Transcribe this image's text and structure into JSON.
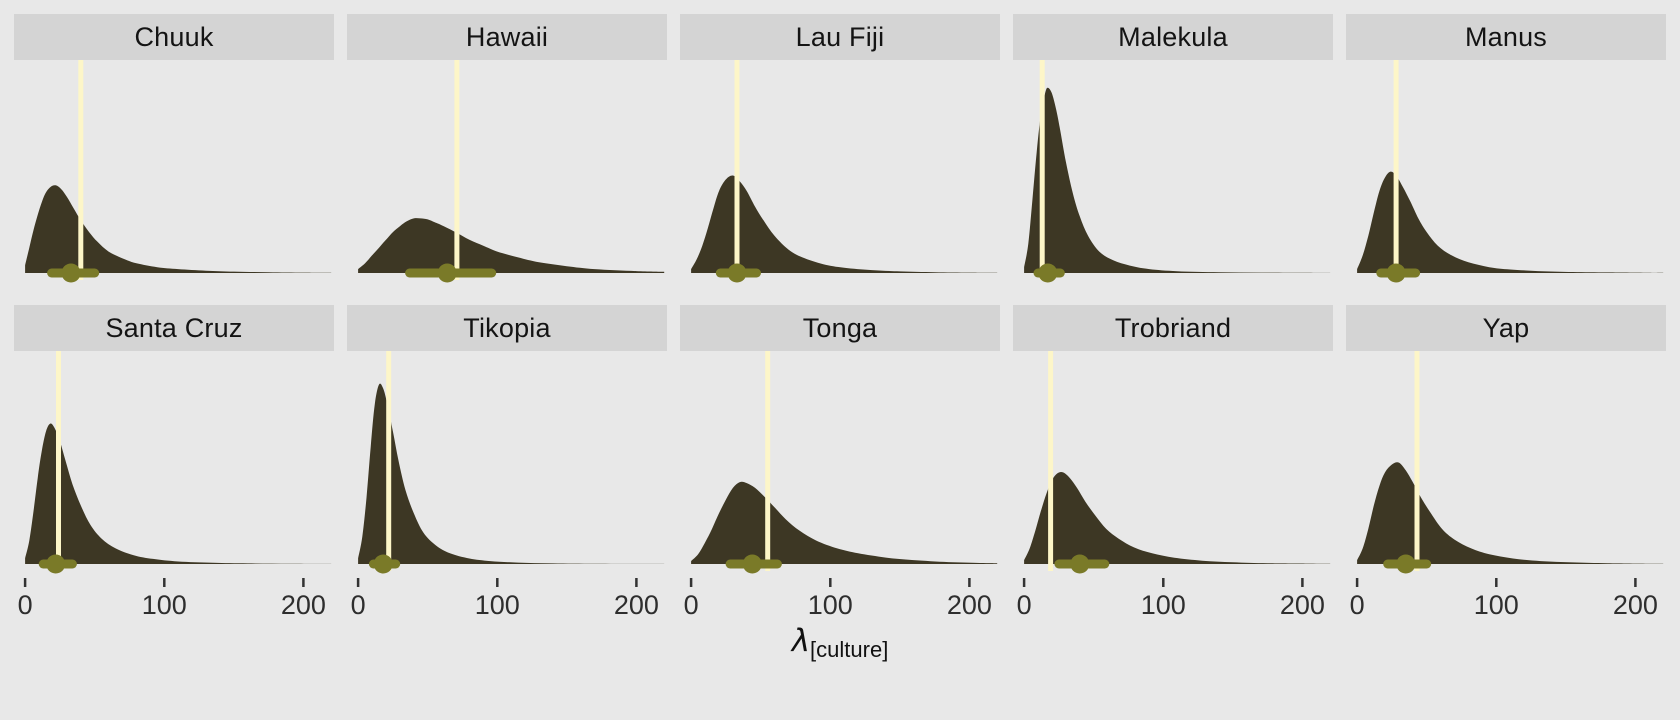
{
  "figure": {
    "xlabel_symbol": "λ",
    "xlabel_subscript": "[culture]"
  },
  "colors": {
    "page_background": "#e8e8e8",
    "strip_background": "#d4d4d4",
    "density_fill": "#3d3724",
    "interval": "#7a7a28",
    "observed_line": "#fdf6c8",
    "tick": "#333333",
    "tick_label": "#2e2e2e"
  },
  "chart_data": {
    "type": "area",
    "subtype": "posterior-density-facets",
    "x_ticks": [
      0,
      100,
      200
    ],
    "x_domain": [
      -8,
      222
    ],
    "xlabel": "lambda[culture]",
    "panels": [
      {
        "name": "Chuuk",
        "observed": 40,
        "point": 33,
        "interval": [
          19,
          50
        ],
        "density": {
          "x": [
            0,
            3,
            6,
            10,
            14,
            18,
            22,
            26,
            30,
            35,
            40,
            46,
            52,
            60,
            70,
            80,
            95,
            110,
            130,
            150,
            175,
            200,
            220
          ],
          "y": [
            0.04,
            0.13,
            0.22,
            0.32,
            0.4,
            0.44,
            0.45,
            0.43,
            0.39,
            0.33,
            0.27,
            0.21,
            0.16,
            0.11,
            0.075,
            0.05,
            0.03,
            0.02,
            0.012,
            0.007,
            0.004,
            0.002,
            0.001
          ]
        }
      },
      {
        "name": "Hawaii",
        "observed": 71,
        "point": 64,
        "interval": [
          37,
          96
        ],
        "density": {
          "x": [
            0,
            5,
            10,
            15,
            20,
            25,
            30,
            35,
            40,
            45,
            50,
            55,
            60,
            70,
            80,
            90,
            100,
            115,
            130,
            150,
            170,
            200,
            220
          ],
          "y": [
            0.02,
            0.05,
            0.09,
            0.13,
            0.17,
            0.21,
            0.24,
            0.265,
            0.28,
            0.28,
            0.275,
            0.26,
            0.245,
            0.21,
            0.17,
            0.14,
            0.11,
            0.08,
            0.055,
            0.035,
            0.02,
            0.01,
            0.006
          ]
        }
      },
      {
        "name": "Lau Fiji",
        "observed": 33,
        "point": 33,
        "interval": [
          21,
          47
        ],
        "density": {
          "x": [
            0,
            4,
            8,
            12,
            16,
            20,
            25,
            30,
            35,
            40,
            46,
            52,
            60,
            70,
            80,
            95,
            110,
            130,
            150,
            175,
            200,
            220
          ],
          "y": [
            0.02,
            0.07,
            0.14,
            0.23,
            0.33,
            0.42,
            0.48,
            0.5,
            0.47,
            0.42,
            0.34,
            0.27,
            0.19,
            0.12,
            0.08,
            0.045,
            0.027,
            0.015,
            0.008,
            0.004,
            0.002,
            0.001
          ]
        }
      },
      {
        "name": "Malekula",
        "observed": 13,
        "point": 17,
        "interval": [
          10,
          26
        ],
        "density": {
          "x": [
            0,
            3,
            6,
            9,
            12,
            15,
            17,
            20,
            23,
            26,
            30,
            35,
            40,
            46,
            54,
            64,
            76,
            90,
            110,
            140,
            170,
            200,
            220
          ],
          "y": [
            0.03,
            0.15,
            0.38,
            0.62,
            0.81,
            0.92,
            0.95,
            0.92,
            0.84,
            0.73,
            0.57,
            0.41,
            0.29,
            0.19,
            0.11,
            0.065,
            0.038,
            0.02,
            0.009,
            0.004,
            0.002,
            0.001,
            0.0005
          ]
        }
      },
      {
        "name": "Manus",
        "observed": 28,
        "point": 28,
        "interval": [
          17,
          42
        ],
        "density": {
          "x": [
            0,
            4,
            8,
            12,
            16,
            20,
            24,
            28,
            33,
            38,
            44,
            50,
            58,
            68,
            80,
            95,
            110,
            130,
            155,
            180,
            210,
            220
          ],
          "y": [
            0.02,
            0.09,
            0.19,
            0.31,
            0.42,
            0.49,
            0.52,
            0.5,
            0.44,
            0.37,
            0.28,
            0.21,
            0.14,
            0.09,
            0.055,
            0.03,
            0.018,
            0.01,
            0.005,
            0.003,
            0.001,
            0.0008
          ]
        }
      },
      {
        "name": "Santa Cruz",
        "observed": 24,
        "point": 22,
        "interval": [
          13,
          34
        ],
        "density": {
          "x": [
            0,
            3,
            6,
            9,
            12,
            15,
            18,
            21,
            25,
            29,
            34,
            40,
            47,
            55,
            65,
            78,
            92,
            110,
            135,
            160,
            190,
            220
          ],
          "y": [
            0.03,
            0.12,
            0.27,
            0.44,
            0.58,
            0.68,
            0.72,
            0.7,
            0.63,
            0.53,
            0.41,
            0.3,
            0.2,
            0.13,
            0.08,
            0.045,
            0.026,
            0.013,
            0.006,
            0.003,
            0.001,
            0.0005
          ]
        }
      },
      {
        "name": "Tikopia",
        "observed": 22,
        "point": 18,
        "interval": [
          11,
          27
        ],
        "density": {
          "x": [
            0,
            3,
            6,
            9,
            12,
            15,
            18,
            21,
            25,
            29,
            34,
            40,
            47,
            56,
            66,
            80,
            95,
            115,
            140,
            170,
            200,
            220
          ],
          "y": [
            0.03,
            0.14,
            0.34,
            0.6,
            0.82,
            0.92,
            0.9,
            0.82,
            0.68,
            0.53,
            0.38,
            0.26,
            0.16,
            0.095,
            0.055,
            0.028,
            0.015,
            0.007,
            0.003,
            0.001,
            0.0005,
            0.0003
          ]
        }
      },
      {
        "name": "Tonga",
        "observed": 55,
        "point": 44,
        "interval": [
          28,
          62
        ],
        "density": {
          "x": [
            0,
            5,
            10,
            15,
            20,
            25,
            30,
            35,
            40,
            46,
            52,
            60,
            68,
            78,
            90,
            105,
            120,
            140,
            160,
            185,
            210,
            220
          ],
          "y": [
            0.015,
            0.05,
            0.11,
            0.18,
            0.26,
            0.33,
            0.39,
            0.42,
            0.415,
            0.39,
            0.35,
            0.29,
            0.23,
            0.17,
            0.12,
            0.08,
            0.055,
            0.033,
            0.02,
            0.01,
            0.005,
            0.004
          ]
        }
      },
      {
        "name": "Trobriand",
        "observed": 19,
        "point": 40,
        "interval": [
          25,
          58
        ],
        "density": {
          "x": [
            0,
            4,
            8,
            12,
            16,
            20,
            24,
            28,
            33,
            38,
            44,
            51,
            59,
            68,
            79,
            92,
            108,
            128,
            150,
            175,
            205,
            220
          ],
          "y": [
            0.02,
            0.08,
            0.17,
            0.27,
            0.36,
            0.43,
            0.465,
            0.47,
            0.44,
            0.39,
            0.32,
            0.25,
            0.18,
            0.13,
            0.085,
            0.055,
            0.032,
            0.017,
            0.009,
            0.004,
            0.002,
            0.001
          ]
        }
      },
      {
        "name": "Yap",
        "observed": 43,
        "point": 35,
        "interval": [
          22,
          50
        ],
        "density": {
          "x": [
            0,
            4,
            8,
            12,
            16,
            20,
            25,
            30,
            35,
            40,
            46,
            53,
            61,
            70,
            82,
            95,
            112,
            132,
            155,
            180,
            210,
            220
          ],
          "y": [
            0.02,
            0.08,
            0.18,
            0.3,
            0.4,
            0.47,
            0.51,
            0.52,
            0.48,
            0.42,
            0.34,
            0.26,
            0.18,
            0.125,
            0.08,
            0.05,
            0.028,
            0.015,
            0.008,
            0.004,
            0.0015,
            0.001
          ]
        }
      }
    ]
  }
}
